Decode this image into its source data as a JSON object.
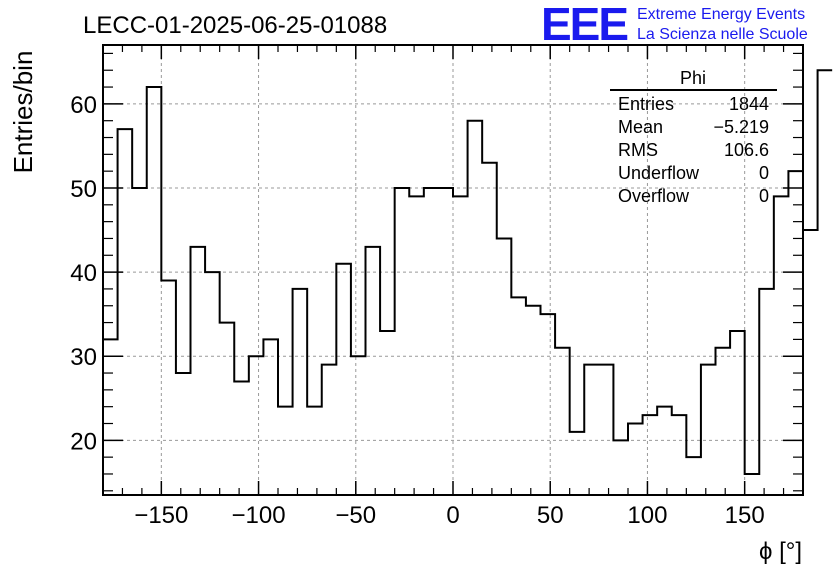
{
  "header": {
    "title": "LECC-01-2025-06-25-01088",
    "logo_text": "EEE",
    "logo_line1": "Extreme Energy Events",
    "logo_line2": "La Scienza nelle Scuole",
    "logo_color": "#1a1aee"
  },
  "stats": {
    "name": "Phi",
    "rows": [
      {
        "label": "Entries",
        "value": "1844"
      },
      {
        "label": "Mean",
        "value": "−5.219"
      },
      {
        "label": "RMS",
        "value": "106.6"
      },
      {
        "label": "Underflow",
        "value": "0"
      },
      {
        "label": "Overflow",
        "value": "0"
      }
    ]
  },
  "chart_data": {
    "type": "histogram",
    "title": "LECC-01-2025-06-25-01088",
    "xlabel": "ϕ [°]",
    "ylabel": "Entries/bin",
    "xlim": [
      -180,
      180
    ],
    "ylim": [
      13.5,
      67
    ],
    "bin_edges_start": -180,
    "bin_width": 7.5,
    "values": [
      32,
      57,
      50,
      62,
      39,
      28,
      43,
      40,
      34,
      27,
      30,
      32,
      24,
      38,
      24,
      29,
      41,
      30,
      43,
      33,
      50,
      49,
      50,
      50,
      49,
      58,
      53,
      44,
      37,
      36,
      35,
      31,
      21,
      29,
      29,
      20,
      22,
      23,
      24,
      23,
      18,
      29,
      31,
      33,
      16,
      38,
      49,
      52,
      45,
      64
    ],
    "x_ticks": [
      -150,
      -100,
      -50,
      0,
      50,
      100,
      150
    ],
    "x_tick_labels": [
      "−150",
      "−100",
      "−50",
      "0",
      "50",
      "100",
      "150"
    ],
    "y_ticks": [
      20,
      30,
      40,
      50,
      60
    ],
    "y_tick_labels": [
      "20",
      "30",
      "40",
      "50",
      "60"
    ],
    "grid": true
  }
}
